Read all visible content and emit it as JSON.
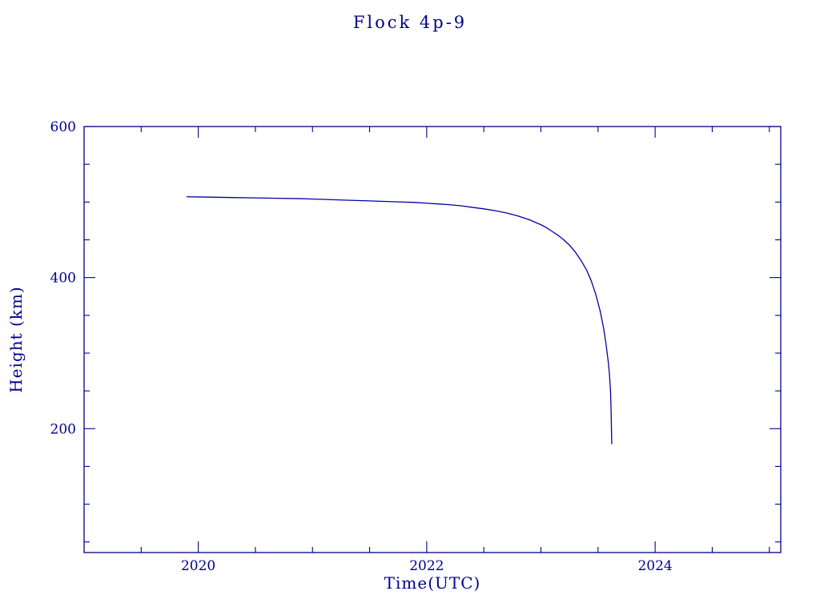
{
  "title": "Flock 4p-9",
  "colors": {
    "background": "#ffffff",
    "axis": "#00008B",
    "text": "#00008B",
    "line": "#0000A8"
  },
  "chart_data": {
    "type": "line",
    "title": "Flock 4p-9",
    "xlabel": "Time(UTC)",
    "ylabel": "Height (km)",
    "xlim": [
      2019.0,
      2025.1
    ],
    "ylim": [
      36,
      600
    ],
    "x_major_ticks": [
      2020,
      2022,
      2024
    ],
    "x_minor_step": 0.5,
    "y_major_ticks": [
      200,
      400,
      600
    ],
    "y_minor_step": 50,
    "grid": false,
    "legend": "none",
    "series": [
      {
        "name": "height_km",
        "x": [
          2019.9,
          2020.1,
          2020.3,
          2020.5,
          2020.7,
          2020.9,
          2021.1,
          2021.3,
          2021.5,
          2021.7,
          2021.9,
          2022.0,
          2022.1,
          2022.2,
          2022.3,
          2022.4,
          2022.5,
          2022.6,
          2022.7,
          2022.8,
          2022.9,
          2023.0,
          2023.05,
          2023.1,
          2023.15,
          2023.2,
          2023.25,
          2023.3,
          2023.35,
          2023.4,
          2023.44,
          2023.48,
          2023.52,
          2023.55,
          2023.57,
          2023.59,
          2023.6,
          2023.61,
          2023.615,
          2023.62
        ],
        "y": [
          507,
          506.5,
          506,
          505.5,
          505,
          504.5,
          503.5,
          502.5,
          501.5,
          500.5,
          499.5,
          498.5,
          497.5,
          496.5,
          495,
          493,
          491,
          488.5,
          485.5,
          481.5,
          476.5,
          470,
          466,
          461,
          456,
          450,
          443,
          434,
          423,
          410,
          396,
          378,
          355,
          332,
          312,
          288,
          272,
          248,
          220,
          180
        ]
      }
    ]
  }
}
